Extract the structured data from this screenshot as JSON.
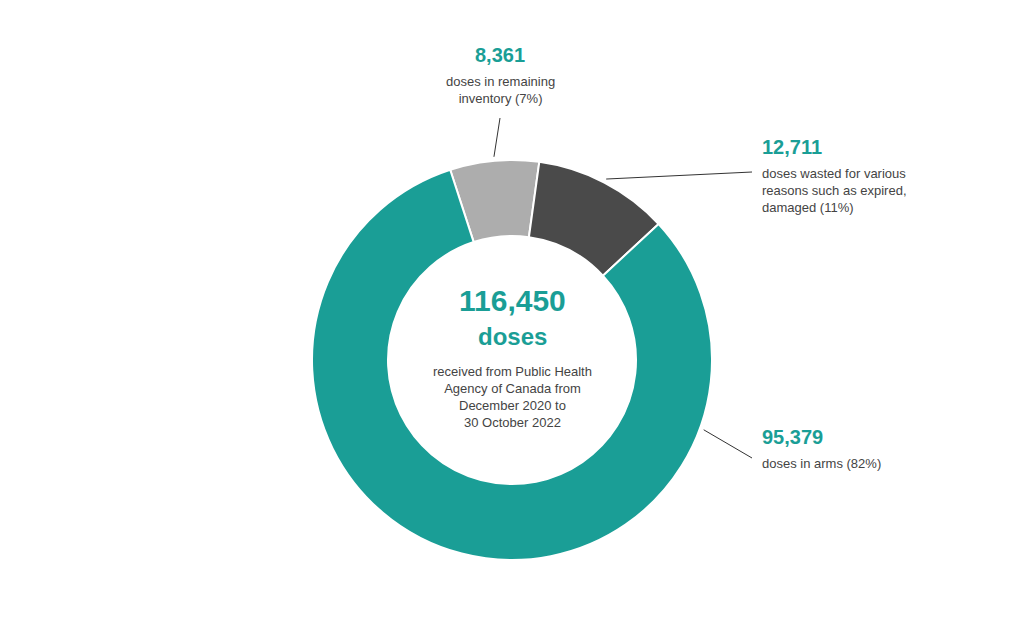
{
  "chart_data": {
    "type": "pie",
    "title": "116,450",
    "subtitle": "doses",
    "annotations": [
      "received from Public Health\nAgency of Canada from\nDecember 2020 to\n30 October 2022"
    ],
    "categories": [
      "doses in remaining\ninventory (7%)",
      "doses wasted for various\nreasons such as expired,\ndamaged (11%)",
      "doses in arms (82%)"
    ],
    "values": [
      8361,
      12711,
      95379
    ],
    "value_labels": [
      "8,361",
      "12,711",
      "95,379"
    ],
    "data_labels": true,
    "colors": [
      "#adadad",
      "#4a4a4a",
      "#1a9e96"
    ],
    "color": "#1a9e96"
  }
}
